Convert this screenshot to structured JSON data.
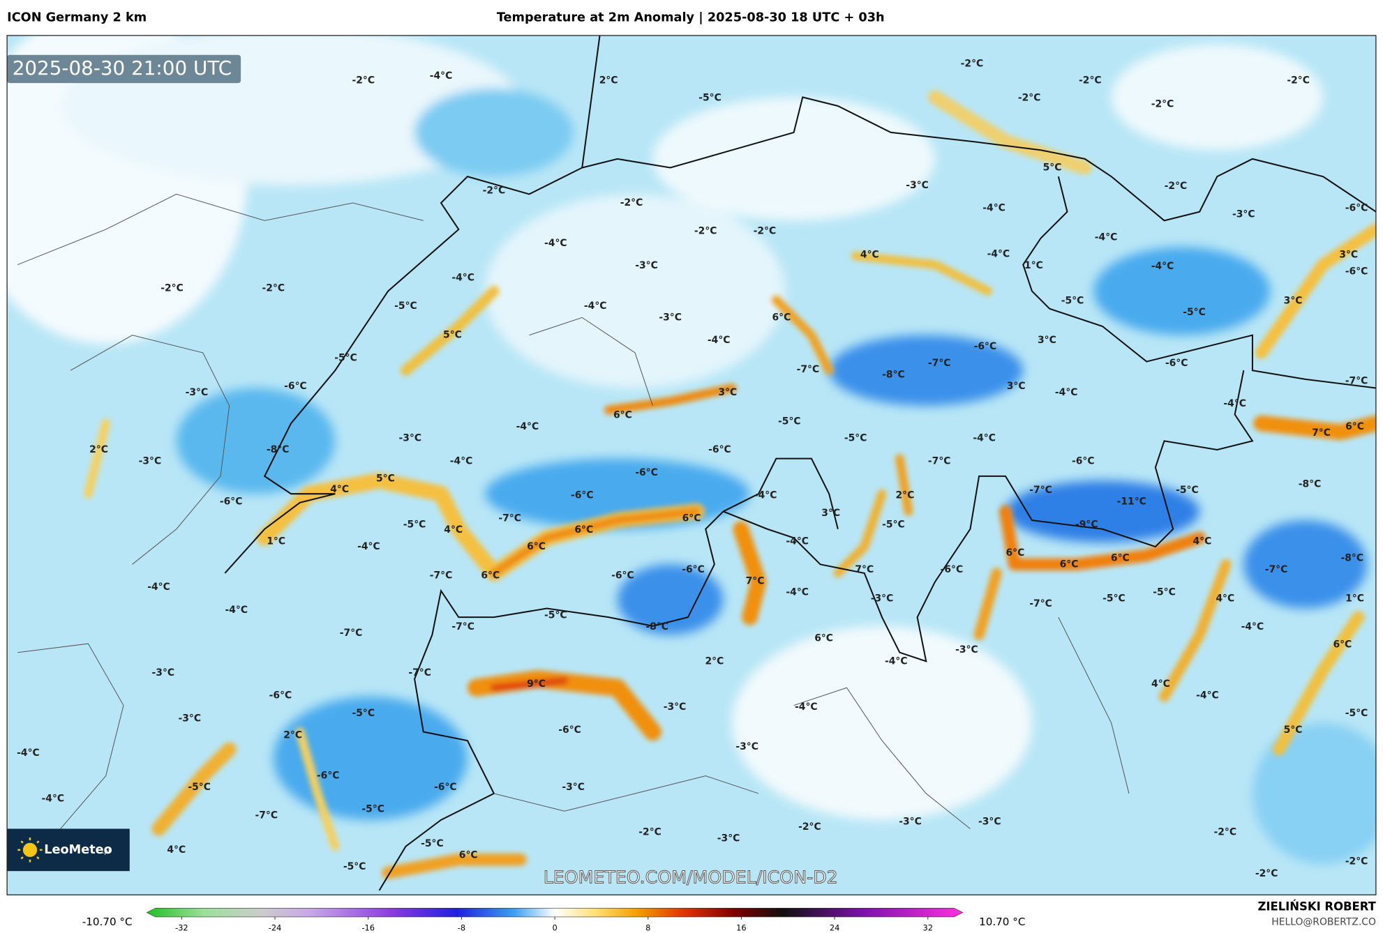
{
  "header": {
    "left": "ICON Germany 2 km",
    "title": "Temperature at 2m Anomaly | 2025-08-30 18 UTC + 03h"
  },
  "timestamp": "2025-08-30 21:00 UTC",
  "logo": {
    "name": "LeoMeteo",
    "suffix": ".pl"
  },
  "watermark": "LEOMETEO.COM/MODEL/ICON-D2",
  "credits": {
    "author": "ZIELIŃSKI ROBERT",
    "email": "HELLO@ROBERTZ.CO"
  },
  "colorbar": {
    "min_label": "-10.70 °C",
    "max_label": "10.70 °C",
    "lim": [
      -35,
      35
    ],
    "ticks": [
      -32,
      -24,
      -16,
      -8,
      0,
      8,
      16,
      24,
      32
    ]
  },
  "map_labels": [
    "-2°C",
    "-4°C",
    "2°C",
    "-5°C",
    "-2°C",
    "-2°C",
    "-2°C",
    "-2°C",
    "-2°C",
    "5°C",
    "-3°C",
    "-2°C",
    "-2°C",
    "-4°C",
    "-2°C",
    "-2°C",
    "-4°C",
    "-2°C",
    "-3°C",
    "-6°C",
    "-2°C",
    "-2°C",
    "-4°C",
    "-3°C",
    "4°C",
    "-4°C",
    "-4°C",
    "-4°C",
    "1°C",
    "-5°C",
    "-4°C",
    "-3°C",
    "6°C",
    "-5°C",
    "3°C",
    "3°C",
    "-6°C",
    "5°C",
    "-5°C",
    "-4°C",
    "3°C",
    "-6°C",
    "-5°C",
    "-7°C",
    "-7°C",
    "-8°C",
    "-6°C",
    "-6°C",
    "-3°C",
    "3°C",
    "3°C",
    "-4°C",
    "-7°C",
    "-4°C",
    "6°C",
    "-5°C",
    "-4°C",
    "-3°C",
    "-5°C",
    "-4°C",
    "7°C",
    "6°C",
    "2°C",
    "-8°C",
    "-6°C",
    "-3°C",
    "-4°C",
    "-7°C",
    "-6°C",
    "-6°C",
    "4°C",
    "5°C",
    "-5°C",
    "-8°C",
    "-6°C",
    "-6°C",
    "-4°C",
    "2°C",
    "-7°C",
    "-11°C",
    "-5°C",
    "-7°C",
    "6°C",
    "3°C",
    "-5°C",
    "-9°C",
    "4°C",
    "6°C",
    "-4°C",
    "4°C",
    "1°C",
    "-4°C",
    "6°C",
    "6°C",
    "6°C",
    "6°C",
    "-8°C",
    "-7°C",
    "6°C",
    "-6°C",
    "-6°C",
    "7°C",
    "7°C",
    "-6°C",
    "-7°C",
    "-4°C",
    "-4°C",
    "-3°C",
    "-5°C",
    "-5°C",
    "-4°C",
    "-5°C",
    "-7°C",
    "4°C",
    "1°C",
    "-7°C",
    "-7°C",
    "-8°C",
    "-4°C",
    "6°C",
    "6°C",
    "2°C",
    "-4°C",
    "-3°C",
    "-3°C",
    "-7°C",
    "9°C",
    "4°C",
    "-6°C",
    "-4°C",
    "-3°C",
    "-4°C",
    "-5°C",
    "-3°C",
    "-5°C",
    "2°C",
    "-6°C",
    "5°C",
    "-3°C",
    "-4°C",
    "-6°C",
    "-6°C",
    "-3°C",
    "-5°C",
    "-4°C",
    "-5°C",
    "-7°C",
    "-3°C",
    "-3°C",
    "-2°C",
    "-2°C",
    "-3°C",
    "-2°C",
    "4°C",
    "-5°C",
    "6°C",
    "-2°C",
    "-5°C",
    "-2°C"
  ]
}
